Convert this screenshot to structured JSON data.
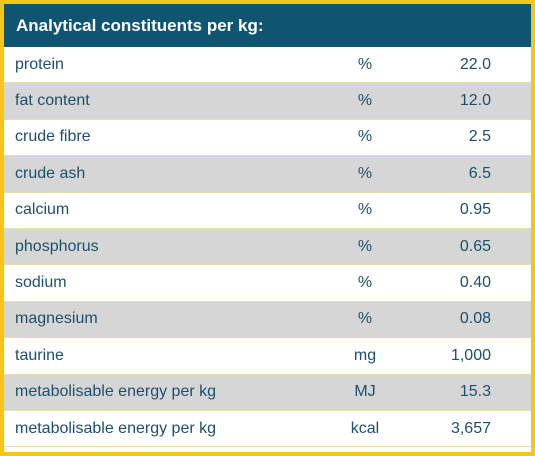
{
  "header": {
    "title": "Analytical constituents per kg:"
  },
  "rows": [
    {
      "name": "protein",
      "unit": "%",
      "value": "22.0"
    },
    {
      "name": "fat content",
      "unit": "%",
      "value": "12.0"
    },
    {
      "name": "crude fibre",
      "unit": "%",
      "value": "2.5"
    },
    {
      "name": "crude ash",
      "unit": "%",
      "value": "6.5"
    },
    {
      "name": "calcium",
      "unit": "%",
      "value": "0.95"
    },
    {
      "name": "phosphorus",
      "unit": "%",
      "value": "0.65"
    },
    {
      "name": "sodium",
      "unit": "%",
      "value": "0.40"
    },
    {
      "name": "magnesium",
      "unit": "%",
      "value": "0.08"
    },
    {
      "name": "taurine",
      "unit": "mg",
      "value": "1,000"
    },
    {
      "name": "metabolisable energy per kg",
      "unit": "MJ",
      "value": "15.3"
    },
    {
      "name": "metabolisable energy per kg",
      "unit": "kcal",
      "value": "3,657"
    }
  ],
  "colors": {
    "border": "#f5c518",
    "header_bg": "#0f5470",
    "row_alt_bg": "#d6d6d6",
    "text": "#1c4f6b"
  }
}
